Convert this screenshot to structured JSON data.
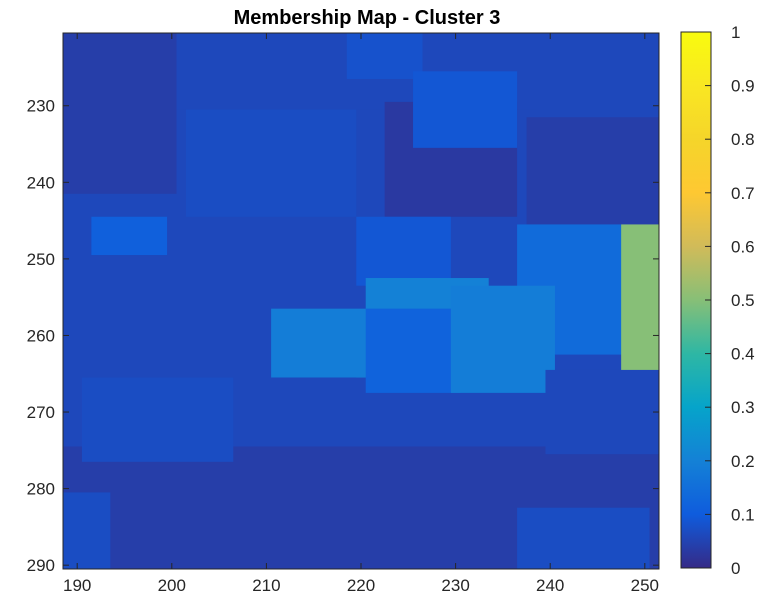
{
  "chart_data": {
    "type": "heatmap",
    "title": "Membership Map - Cluster 3",
    "xlabel": "",
    "ylabel": "",
    "xlim": [
      188.5,
      251.5
    ],
    "ylim": [
      220.5,
      290.5
    ],
    "y_reversed": true,
    "x_ticks": [
      190,
      200,
      210,
      220,
      230,
      240,
      250
    ],
    "y_ticks": [
      230,
      240,
      250,
      260,
      270,
      280,
      290
    ],
    "colormap": "parula",
    "clim": [
      0,
      1
    ],
    "colorbar_ticks": [
      "0",
      "0.1",
      "0.2",
      "0.3",
      "0.4",
      "0.5",
      "0.6",
      "0.7",
      "0.8",
      "0.9",
      "1"
    ],
    "colorbar_values": [
      0,
      0.1,
      0.2,
      0.3,
      0.4,
      0.5,
      0.6,
      0.7,
      0.8,
      0.9,
      1
    ],
    "background_value": 0.06,
    "regions": [
      {
        "name": "upper-left-dark",
        "value": 0.04,
        "x": [
          188.5,
          200.5
        ],
        "y": [
          220.5,
          241.5
        ]
      },
      {
        "name": "upper-band",
        "value": 0.06,
        "x": [
          200.5,
          238.5
        ],
        "y": [
          220.5,
          230.5
        ]
      },
      {
        "name": "top-center-light",
        "value": 0.08,
        "x": [
          218.5,
          226.5
        ],
        "y": [
          220.5,
          226.5
        ]
      },
      {
        "name": "center-dark",
        "value": 0.03,
        "x": [
          222.5,
          236.5
        ],
        "y": [
          229.5,
          244.5
        ]
      },
      {
        "name": "right-dark",
        "value": 0.04,
        "x": [
          237.5,
          251.5
        ],
        "y": [
          231.5,
          247.5
        ]
      },
      {
        "name": "grain-230-232",
        "value": 0.09,
        "x": [
          225.5,
          236.5
        ],
        "y": [
          225.5,
          235.5
        ]
      },
      {
        "name": "grain-200-240",
        "value": 0.07,
        "x": [
          201.5,
          219.5
        ],
        "y": [
          230.5,
          244.5
        ]
      },
      {
        "name": "grain-left-250",
        "value": 0.11,
        "x": [
          191.5,
          199.5
        ],
        "y": [
          244.5,
          249.5
        ]
      },
      {
        "name": "grain-center-250",
        "value": 0.09,
        "x": [
          219.5,
          229.5
        ],
        "y": [
          244.5,
          253.5
        ]
      },
      {
        "name": "grain-right-250",
        "value": 0.14,
        "x": [
          236.5,
          248.5
        ],
        "y": [
          245.5,
          262.5
        ]
      },
      {
        "name": "teal-edge",
        "value": 0.5,
        "x": [
          247.5,
          251.5
        ],
        "y": [
          245.5,
          265.5
        ]
      },
      {
        "name": "bright-blue-left",
        "value": 0.19,
        "x": [
          210.5,
          221.5
        ],
        "y": [
          256.5,
          265.5
        ]
      },
      {
        "name": "bright-blue-band",
        "value": 0.2,
        "x": [
          220.5,
          233.5
        ],
        "y": [
          252.5,
          257.5
        ]
      },
      {
        "name": "mid-blue-center",
        "value": 0.12,
        "x": [
          220.5,
          230.5
        ],
        "y": [
          256.5,
          267.5
        ]
      },
      {
        "name": "bright-blue-right",
        "value": 0.19,
        "x": [
          229.5,
          240.5
        ],
        "y": [
          253.5,
          267.5
        ]
      },
      {
        "name": "lower-left-dark",
        "value": 0.04,
        "x": [
          188.5,
          251.5
        ],
        "y": [
          274.5,
          290.5
        ]
      },
      {
        "name": "grain-lower-left",
        "value": 0.07,
        "x": [
          190.5,
          206.5
        ],
        "y": [
          265.5,
          276.5
        ]
      },
      {
        "name": "grain-lower-center",
        "value": 0.06,
        "x": [
          207.5,
          219.5
        ],
        "y": [
          265.5,
          273.5
        ]
      },
      {
        "name": "grain-lower-right",
        "value": 0.06,
        "x": [
          239.5,
          251.5
        ],
        "y": [
          264.5,
          275.5
        ]
      },
      {
        "name": "grain-bottom-left",
        "value": 0.07,
        "x": [
          188.5,
          193.5
        ],
        "y": [
          280.5,
          290.5
        ]
      },
      {
        "name": "grain-bottom-right",
        "value": 0.07,
        "x": [
          236.5,
          250.5
        ],
        "y": [
          282.5,
          290.5
        ]
      }
    ]
  }
}
